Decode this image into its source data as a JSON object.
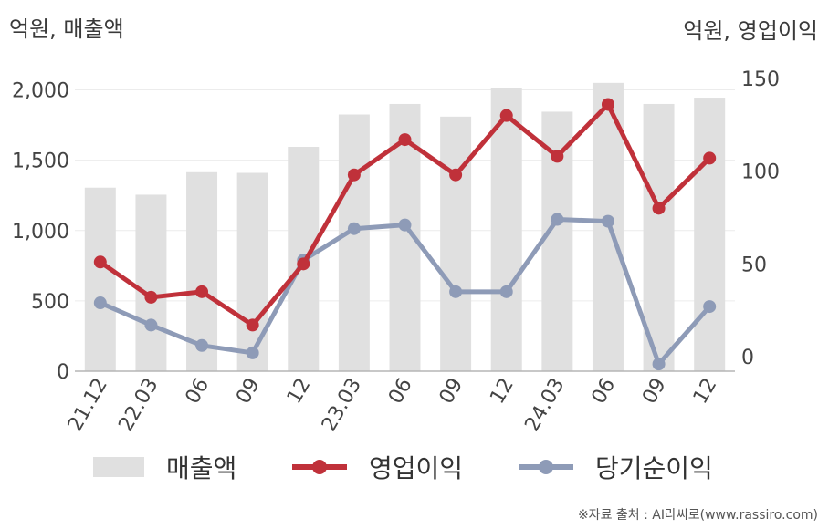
{
  "axis_units": {
    "left": "억원, 매출액",
    "right": "억원, 영업이익"
  },
  "legend": {
    "revenue": "매출액",
    "operating_profit": "영업이익",
    "net_income": "당기순이익"
  },
  "source": "※자료 출처 : AI라씨로(www.rassiro.com)",
  "colors": {
    "revenue": "#e0e0e0",
    "operating_profit": "#c0313a",
    "net_income": "#8e9bb7"
  },
  "chart_data": {
    "type": "bar+line",
    "categories": [
      "21.12",
      "22.03",
      "06",
      "09",
      "12",
      "23.03",
      "06",
      "09",
      "12",
      "24.03",
      "06",
      "09",
      "12"
    ],
    "left_axis": {
      "ylim": [
        0,
        2250
      ],
      "ticks": [
        0,
        500,
        1000,
        1500,
        2000
      ],
      "tick_labels": [
        "0",
        "500",
        "1,000",
        "1,500",
        "2,000"
      ]
    },
    "right_axis": {
      "ylim": [
        -5,
        152
      ],
      "ticks": [
        0,
        50,
        100,
        150
      ],
      "tick_labels": [
        "0",
        "50",
        "100",
        "150"
      ]
    },
    "grid": true,
    "series": [
      {
        "key": "revenue",
        "kind": "bar",
        "axis": "left",
        "values": [
          1305,
          1255,
          1415,
          1410,
          1595,
          1825,
          1900,
          1810,
          2015,
          1845,
          2050,
          1900,
          1945
        ]
      },
      {
        "key": "operating_profit",
        "kind": "line",
        "axis": "right",
        "values": [
          51,
          32,
          35,
          17,
          50,
          98,
          117,
          98,
          130,
          108,
          136,
          80,
          107
        ]
      },
      {
        "key": "net_income",
        "kind": "line",
        "axis": "right",
        "values": [
          29,
          17,
          6,
          2,
          52,
          69,
          71,
          35,
          35,
          74,
          73,
          -4,
          27
        ]
      }
    ]
  }
}
